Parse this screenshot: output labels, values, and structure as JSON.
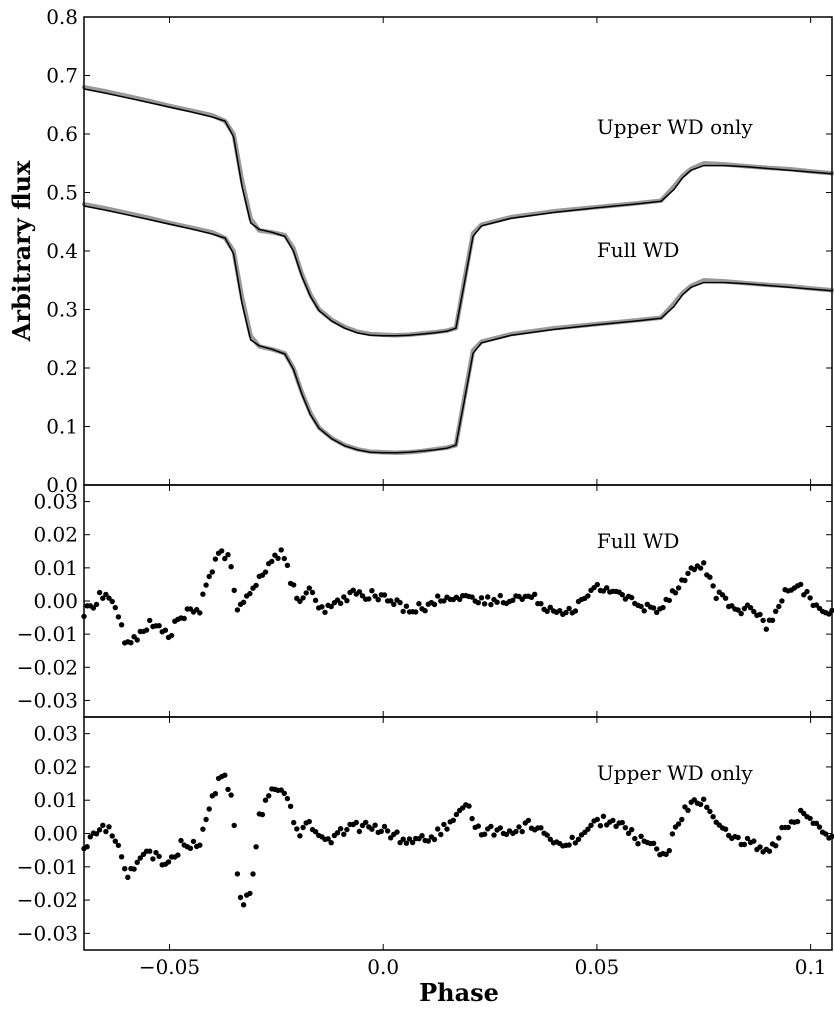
{
  "chart_data": [
    {
      "type": "line",
      "panel": "light-curves",
      "ylabel": "Arbitrary flux",
      "xlim": [
        -0.07,
        0.105
      ],
      "ylim": [
        0.0,
        0.8
      ],
      "yticks": [
        "0.0",
        "0.1",
        "0.2",
        "0.3",
        "0.4",
        "0.5",
        "0.6",
        "0.7",
        "0.8"
      ],
      "ytick_values": [
        0.0,
        0.1,
        0.2,
        0.3,
        0.4,
        0.5,
        0.6,
        0.7,
        0.8
      ],
      "annotations": [
        {
          "text": "Upper WD only",
          "x": 0.05,
          "y": 0.6
        },
        {
          "text": "Full WD",
          "x": 0.05,
          "y": 0.39
        }
      ],
      "series": [
        {
          "label_ref": "Upper WD only",
          "style": "data",
          "color": "#999999",
          "x": [
            -0.07,
            -0.065,
            -0.06,
            -0.055,
            -0.05,
            -0.045,
            -0.04,
            -0.037,
            -0.035,
            -0.033,
            -0.031,
            -0.029,
            -0.026,
            -0.023,
            -0.021,
            -0.019,
            -0.017,
            -0.015,
            -0.012,
            -0.009,
            -0.006,
            -0.003,
            0.0,
            0.003,
            0.006,
            0.009,
            0.012,
            0.015,
            0.017,
            0.019,
            0.021,
            0.023,
            0.03,
            0.04,
            0.05,
            0.06,
            0.065,
            0.068,
            0.07,
            0.072,
            0.075,
            0.08,
            0.085,
            0.09,
            0.095,
            0.1,
            0.105
          ],
          "y": [
            0.68,
            0.673,
            0.665,
            0.657,
            0.648,
            0.64,
            0.632,
            0.622,
            0.6,
            0.52,
            0.455,
            0.435,
            0.432,
            0.427,
            0.405,
            0.36,
            0.325,
            0.3,
            0.282,
            0.27,
            0.262,
            0.258,
            0.257,
            0.256,
            0.257,
            0.259,
            0.261,
            0.264,
            0.268,
            0.35,
            0.43,
            0.445,
            0.458,
            0.468,
            0.475,
            0.482,
            0.486,
            0.51,
            0.528,
            0.54,
            0.55,
            0.548,
            0.545,
            0.542,
            0.54,
            0.536,
            0.533
          ]
        },
        {
          "label_ref": "Upper WD only",
          "style": "model",
          "color": "#000000",
          "x": [
            -0.07,
            -0.065,
            -0.06,
            -0.055,
            -0.05,
            -0.045,
            -0.04,
            -0.037,
            -0.035,
            -0.033,
            -0.031,
            -0.029,
            -0.026,
            -0.023,
            -0.021,
            -0.019,
            -0.017,
            -0.015,
            -0.012,
            -0.009,
            -0.006,
            -0.003,
            0.0,
            0.003,
            0.006,
            0.009,
            0.012,
            0.015,
            0.017,
            0.019,
            0.021,
            0.023,
            0.03,
            0.04,
            0.05,
            0.06,
            0.065,
            0.068,
            0.07,
            0.072,
            0.075,
            0.08,
            0.085,
            0.09,
            0.095,
            0.1,
            0.105
          ],
          "y": [
            0.677,
            0.67,
            0.662,
            0.654,
            0.646,
            0.638,
            0.629,
            0.622,
            0.595,
            0.51,
            0.448,
            0.437,
            0.432,
            0.425,
            0.4,
            0.356,
            0.322,
            0.298,
            0.28,
            0.268,
            0.26,
            0.256,
            0.255,
            0.255,
            0.256,
            0.258,
            0.26,
            0.263,
            0.268,
            0.345,
            0.425,
            0.443,
            0.456,
            0.466,
            0.474,
            0.481,
            0.485,
            0.505,
            0.525,
            0.538,
            0.546,
            0.546,
            0.544,
            0.541,
            0.538,
            0.535,
            0.532
          ]
        },
        {
          "label_ref": "Full WD",
          "style": "data",
          "color": "#999999",
          "x": [
            -0.07,
            -0.065,
            -0.06,
            -0.055,
            -0.05,
            -0.045,
            -0.04,
            -0.037,
            -0.035,
            -0.033,
            -0.031,
            -0.029,
            -0.026,
            -0.023,
            -0.021,
            -0.019,
            -0.017,
            -0.015,
            -0.012,
            -0.009,
            -0.006,
            -0.003,
            0.0,
            0.003,
            0.006,
            0.009,
            0.012,
            0.015,
            0.017,
            0.019,
            0.021,
            0.023,
            0.03,
            0.04,
            0.05,
            0.06,
            0.065,
            0.068,
            0.07,
            0.072,
            0.075,
            0.08,
            0.085,
            0.09,
            0.095,
            0.1,
            0.105
          ],
          "y": [
            0.48,
            0.473,
            0.465,
            0.457,
            0.448,
            0.44,
            0.432,
            0.422,
            0.4,
            0.32,
            0.255,
            0.237,
            0.232,
            0.225,
            0.2,
            0.158,
            0.123,
            0.098,
            0.08,
            0.068,
            0.061,
            0.057,
            0.056,
            0.055,
            0.056,
            0.058,
            0.061,
            0.064,
            0.068,
            0.15,
            0.23,
            0.245,
            0.258,
            0.268,
            0.275,
            0.282,
            0.286,
            0.31,
            0.328,
            0.34,
            0.35,
            0.348,
            0.345,
            0.342,
            0.34,
            0.336,
            0.333
          ]
        },
        {
          "label_ref": "Full WD",
          "style": "model",
          "color": "#000000",
          "x": [
            -0.07,
            -0.065,
            -0.06,
            -0.055,
            -0.05,
            -0.045,
            -0.04,
            -0.037,
            -0.035,
            -0.033,
            -0.031,
            -0.029,
            -0.026,
            -0.023,
            -0.021,
            -0.019,
            -0.017,
            -0.015,
            -0.012,
            -0.009,
            -0.006,
            -0.003,
            0.0,
            0.003,
            0.006,
            0.009,
            0.012,
            0.015,
            0.017,
            0.019,
            0.021,
            0.023,
            0.03,
            0.04,
            0.05,
            0.06,
            0.065,
            0.068,
            0.07,
            0.072,
            0.075,
            0.08,
            0.085,
            0.09,
            0.095,
            0.1,
            0.105
          ],
          "y": [
            0.477,
            0.47,
            0.462,
            0.454,
            0.446,
            0.438,
            0.429,
            0.422,
            0.395,
            0.31,
            0.248,
            0.238,
            0.232,
            0.224,
            0.198,
            0.155,
            0.12,
            0.097,
            0.079,
            0.067,
            0.06,
            0.056,
            0.055,
            0.055,
            0.056,
            0.058,
            0.06,
            0.063,
            0.068,
            0.145,
            0.225,
            0.243,
            0.256,
            0.266,
            0.274,
            0.281,
            0.285,
            0.305,
            0.325,
            0.338,
            0.346,
            0.346,
            0.344,
            0.341,
            0.338,
            0.335,
            0.332
          ]
        }
      ]
    },
    {
      "type": "scatter",
      "panel": "residuals-full",
      "xlim": [
        -0.07,
        0.105
      ],
      "ylim": [
        -0.035,
        0.035
      ],
      "yticks": [
        "0.03",
        "0.02",
        "0.01",
        "0.00",
        "−0.01",
        "−0.02",
        "−0.03"
      ],
      "ytick_values": [
        0.03,
        0.02,
        0.01,
        0.0,
        -0.01,
        -0.02,
        -0.03
      ],
      "annotations": [
        {
          "text": "Full WD",
          "x": 0.05,
          "y": 0.016
        }
      ],
      "control": [
        [
          -0.07,
          -0.004
        ],
        [
          -0.066,
          0.002
        ],
        [
          -0.063,
          0.0
        ],
        [
          -0.06,
          -0.014
        ],
        [
          -0.055,
          -0.007
        ],
        [
          -0.05,
          -0.01
        ],
        [
          -0.047,
          -0.004
        ],
        [
          -0.043,
          -0.003
        ],
        [
          -0.04,
          0.01
        ],
        [
          -0.038,
          0.016
        ],
        [
          -0.036,
          0.012
        ],
        [
          -0.034,
          -0.003
        ],
        [
          -0.031,
          0.002
        ],
        [
          -0.029,
          0.008
        ],
        [
          -0.026,
          0.012
        ],
        [
          -0.024,
          0.015
        ],
        [
          -0.022,
          0.008
        ],
        [
          -0.02,
          0.0
        ],
        [
          -0.017,
          0.003
        ],
        [
          -0.015,
          -0.003
        ],
        [
          -0.012,
          -0.002
        ],
        [
          -0.008,
          0.002
        ],
        [
          -0.004,
          0.002
        ],
        [
          0.0,
          0.001
        ],
        [
          0.005,
          -0.002
        ],
        [
          0.01,
          -0.002
        ],
        [
          0.015,
          0.002
        ],
        [
          0.02,
          0.0
        ],
        [
          0.025,
          0.0
        ],
        [
          0.03,
          0.001
        ],
        [
          0.035,
          0.001
        ],
        [
          0.04,
          -0.003
        ],
        [
          0.045,
          -0.002
        ],
        [
          0.05,
          0.004
        ],
        [
          0.055,
          0.003
        ],
        [
          0.06,
          -0.002
        ],
        [
          0.065,
          -0.002
        ],
        [
          0.069,
          0.005
        ],
        [
          0.072,
          0.009
        ],
        [
          0.075,
          0.011
        ],
        [
          0.078,
          0.002
        ],
        [
          0.082,
          -0.002
        ],
        [
          0.087,
          -0.003
        ],
        [
          0.09,
          -0.008
        ],
        [
          0.094,
          0.002
        ],
        [
          0.098,
          0.004
        ],
        [
          0.101,
          -0.002
        ],
        [
          0.105,
          -0.003
        ]
      ]
    },
    {
      "type": "scatter",
      "panel": "residuals-upper",
      "xlabel": "Phase",
      "xlim": [
        -0.07,
        0.105
      ],
      "ylim": [
        -0.035,
        0.035
      ],
      "xticks": [
        "−0.05",
        "0.0",
        "0.05",
        "0.1"
      ],
      "xtick_values": [
        -0.05,
        0.0,
        0.05,
        0.1
      ],
      "yticks": [
        "0.03",
        "0.02",
        "0.01",
        "0.00",
        "−0.01",
        "−0.02",
        "−0.03"
      ],
      "ytick_values": [
        0.03,
        0.02,
        0.01,
        0.0,
        -0.01,
        -0.02,
        -0.03
      ],
      "annotations": [
        {
          "text": "Upper WD only",
          "x": 0.05,
          "y": 0.016
        }
      ],
      "control": [
        [
          -0.07,
          -0.004
        ],
        [
          -0.066,
          0.002
        ],
        [
          -0.063,
          0.0
        ],
        [
          -0.06,
          -0.012
        ],
        [
          -0.055,
          -0.006
        ],
        [
          -0.05,
          -0.009
        ],
        [
          -0.047,
          -0.003
        ],
        [
          -0.043,
          -0.003
        ],
        [
          -0.04,
          0.01
        ],
        [
          -0.038,
          0.018
        ],
        [
          -0.036,
          0.014
        ],
        [
          -0.035,
          0.005
        ],
        [
          -0.034,
          -0.013
        ],
        [
          -0.033,
          -0.022
        ],
        [
          -0.031,
          -0.018
        ],
        [
          -0.03,
          -0.008
        ],
        [
          -0.029,
          0.005
        ],
        [
          -0.027,
          0.01
        ],
        [
          -0.025,
          0.015
        ],
        [
          -0.022,
          0.01
        ],
        [
          -0.02,
          0.0
        ],
        [
          -0.017,
          0.004
        ],
        [
          -0.015,
          -0.002
        ],
        [
          -0.012,
          -0.002
        ],
        [
          -0.008,
          0.002
        ],
        [
          -0.004,
          0.002
        ],
        [
          0.0,
          0.001
        ],
        [
          0.005,
          -0.002
        ],
        [
          0.01,
          -0.002
        ],
        [
          0.015,
          0.002
        ],
        [
          0.02,
          0.008
        ],
        [
          0.022,
          0.001
        ],
        [
          0.026,
          0.001
        ],
        [
          0.03,
          0.001
        ],
        [
          0.035,
          0.003
        ],
        [
          0.04,
          -0.003
        ],
        [
          0.045,
          -0.002
        ],
        [
          0.05,
          0.004
        ],
        [
          0.055,
          0.003
        ],
        [
          0.06,
          -0.002
        ],
        [
          0.064,
          -0.004
        ],
        [
          0.066,
          -0.008
        ],
        [
          0.069,
          0.004
        ],
        [
          0.072,
          0.009
        ],
        [
          0.075,
          0.01
        ],
        [
          0.078,
          0.002
        ],
        [
          0.082,
          -0.002
        ],
        [
          0.087,
          -0.003
        ],
        [
          0.09,
          -0.006
        ],
        [
          0.094,
          0.002
        ],
        [
          0.098,
          0.006
        ],
        [
          0.101,
          0.002
        ],
        [
          0.105,
          -0.002
        ]
      ]
    }
  ]
}
